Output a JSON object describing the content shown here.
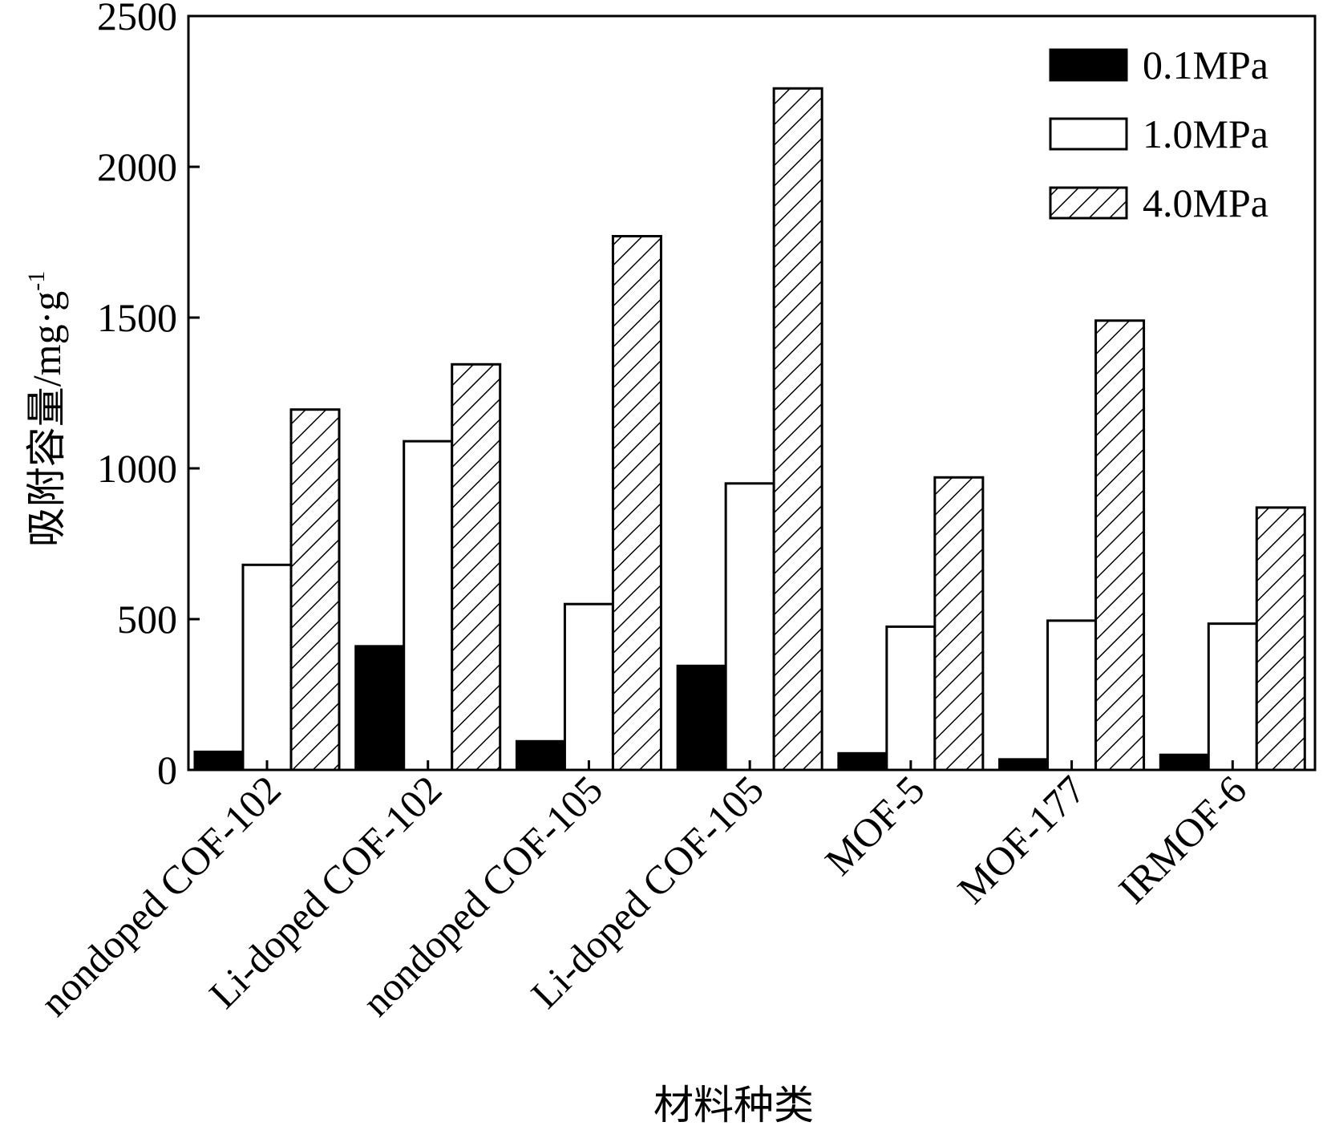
{
  "chart_data": {
    "type": "bar",
    "title": "",
    "xlabel": "材料种类",
    "ylabel": "吸附容量/mg·g",
    "ylabel_superscript": "-1",
    "ylim": [
      0,
      2500
    ],
    "yticks": [
      "0",
      "500",
      "1000",
      "1500",
      "2000",
      "2500"
    ],
    "categories": [
      "nondoped COF-102",
      "Li-doped COF-102",
      "nondoped COF-105",
      "Li-doped COF-105",
      "MOF-5",
      "MOF-177",
      "IRMOF-6"
    ],
    "series": [
      {
        "name": "0.1MPa",
        "style": "solid",
        "color": "#000000",
        "values": [
          60,
          410,
          95,
          345,
          55,
          35,
          50
        ]
      },
      {
        "name": "1.0MPa",
        "style": "open",
        "color": "#ffffff",
        "values": [
          680,
          1090,
          550,
          950,
          475,
          495,
          485
        ]
      },
      {
        "name": "4.0MPa",
        "style": "hatched",
        "color": "#ffffff",
        "values": [
          1195,
          1345,
          1770,
          2260,
          970,
          1490,
          870
        ]
      }
    ],
    "legend_position": "top-right",
    "grid": false
  }
}
